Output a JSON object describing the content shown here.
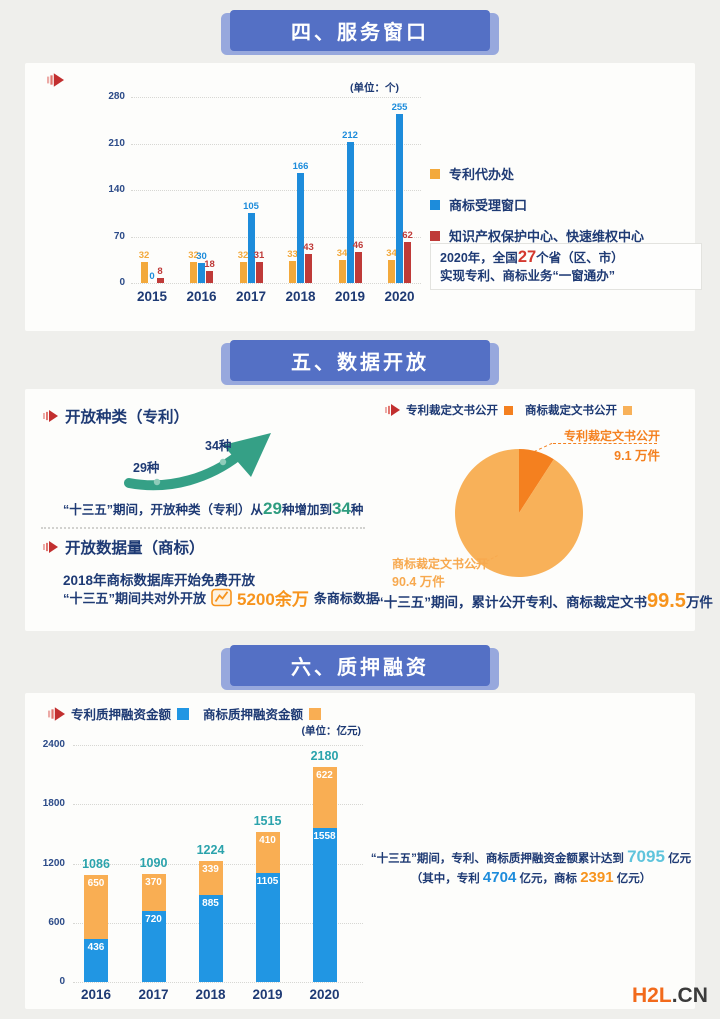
{
  "banners": [
    {
      "label": "四、服务窗口"
    },
    {
      "label": "五、数据开放"
    },
    {
      "label": "六、质押融资"
    }
  ],
  "service_section": {
    "note_lines": [
      [
        {
          "t": "2020年，全国"
        },
        {
          "t": "27",
          "s": "red-lg"
        },
        {
          "t": "个省（区、市）"
        }
      ],
      [
        {
          "t": "实现专利、商标业务“一窗通办”"
        }
      ]
    ]
  },
  "data_section": {
    "heading_patent": "开放种类（专利）",
    "from_label": "29种",
    "to_label": "34种",
    "sentence_patent": [
      {
        "t": "“十三五”期间，开放种类（专利）从"
      },
      {
        "t": "29",
        "s": "green-lg"
      },
      {
        "t": "种增加到"
      },
      {
        "t": "34",
        "s": "green-lg"
      },
      {
        "t": "种"
      }
    ],
    "heading_trademark": "开放数据量（商标）",
    "tm_line1": "2018年商标数据库开始免费开放",
    "tm_line2_pre": "“十三五”期间共对外开放",
    "tm_line2_big": "5200余万",
    "tm_line2_post": "条商标数据",
    "pie_callout_top_value": "9.1 万件",
    "pie_callout_bottom_value": "90.4 万件",
    "pie_sentence": [
      {
        "t": "“十三五”期间，累计公开专利、商标裁定文书"
      },
      {
        "t": "99.5",
        "s": "orange-xl"
      },
      {
        "t": "万件"
      }
    ]
  },
  "finance_section": {
    "sentence1": [
      {
        "t": "“十三五”期间，专利、商标质押融资金额累计达到 "
      },
      {
        "t": "7095",
        "s": "cyan-lg"
      },
      {
        "t": " 亿元"
      }
    ],
    "sentence2": [
      {
        "t": "（其中，专利 "
      },
      {
        "t": "4704",
        "s": "blue-lg"
      },
      {
        "t": " 亿元，商标 "
      },
      {
        "t": "2391",
        "s": "orange-lg"
      },
      {
        "t": " 亿元）"
      }
    ]
  },
  "watermark": {
    "brand": "H2L",
    "tld": ".CN",
    "brand_color": "#f26a1b",
    "tld_color": "#3b3b3b"
  },
  "chart_data": [
    {
      "type": "bar",
      "title": "服务窗口",
      "unit_label": "(单位：个)",
      "categories": [
        "2015",
        "2016",
        "2017",
        "2018",
        "2019",
        "2020"
      ],
      "series": [
        {
          "name": "专利代办处",
          "color": "#f3a93b",
          "values": [
            32,
            32,
            32,
            33,
            34,
            34
          ]
        },
        {
          "name": "商标受理窗口",
          "color": "#1d8cdb",
          "values": [
            0,
            30,
            105,
            166,
            212,
            255
          ]
        },
        {
          "name": "知识产权保护中心、快速维权中心",
          "color": "#bf3a38",
          "values": [
            8,
            18,
            31,
            43,
            46,
            62
          ]
        }
      ],
      "yticks": [
        0,
        70,
        140,
        210,
        280
      ],
      "ylim": [
        0,
        280
      ],
      "grid": "dotted",
      "legend_position": "right"
    },
    {
      "type": "pie",
      "title": "裁定文书公开",
      "slices": [
        {
          "label": "专利裁定文书公开",
          "value": 9.1,
          "display": "9.1 万件",
          "color": "#f4801f"
        },
        {
          "label": "商标裁定文书公开",
          "value": 90.4,
          "display": "90.4 万件",
          "color": "#f8b159"
        }
      ],
      "total": 99.5,
      "total_unit": "万件",
      "legend_position": "top"
    },
    {
      "type": "stacked-bar",
      "title": "质押融资",
      "unit_label": "(单位：亿元)",
      "categories": [
        "2016",
        "2017",
        "2018",
        "2019",
        "2020"
      ],
      "series": [
        {
          "name": "专利质押融资金额",
          "color": "#2196e3",
          "values": [
            436,
            720,
            885,
            1105,
            1558
          ]
        },
        {
          "name": "商标质押融资金额",
          "color": "#f9ae53",
          "values": [
            650,
            370,
            339,
            410,
            622
          ]
        }
      ],
      "totals": [
        1086,
        1090,
        1224,
        1515,
        2180
      ],
      "total_color": "#2ba3ac",
      "yticks": [
        0,
        600,
        1200,
        1800,
        2400
      ],
      "ylim": [
        0,
        2400
      ],
      "grid": "dotted",
      "legend_position": "top"
    }
  ]
}
